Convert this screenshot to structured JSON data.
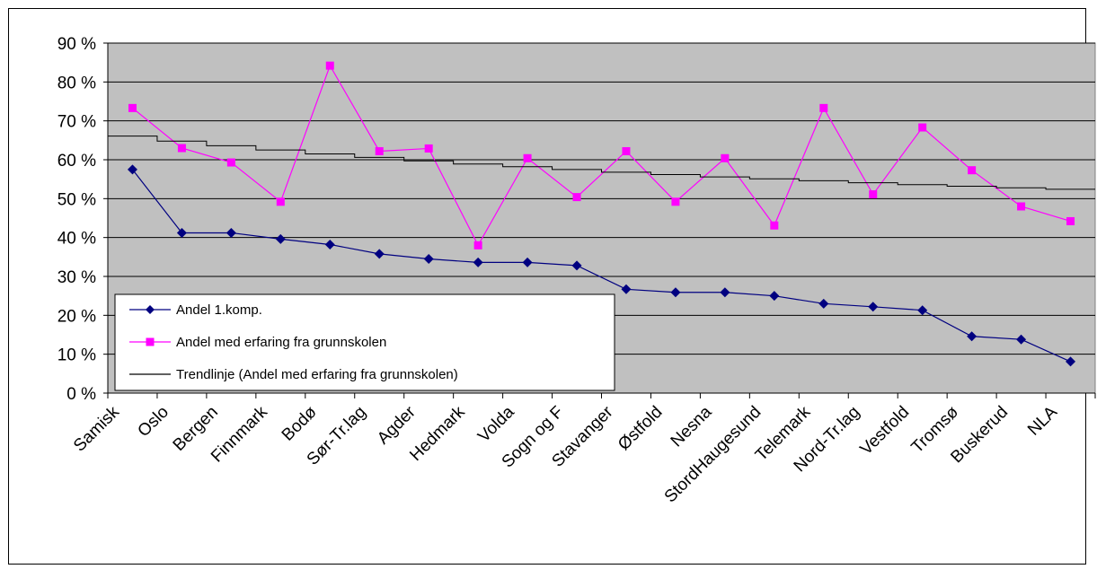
{
  "chart_data": {
    "type": "line",
    "categories": [
      "Samisk",
      "Oslo",
      "Bergen",
      "Finnmark",
      "Bodø",
      "Sør-Tr.lag",
      "Agder",
      "Hedmark",
      "Volda",
      "Sogn og F",
      "Stavanger",
      "Østfold",
      "Nesna",
      "StordHaugesund",
      "Telemark",
      "Nord-Tr.lag",
      "Vestfold",
      "Tromsø",
      "Buskerud",
      "NLA"
    ],
    "series": [
      {
        "name": "Andel 1.komp.",
        "color": "#000080",
        "marker": "diamond",
        "values": [
          57.5,
          41.2,
          41.2,
          39.6,
          38.2,
          35.8,
          34.5,
          33.6,
          33.6,
          32.8,
          26.7,
          25.9,
          25.9,
          25.0,
          23.0,
          22.2,
          21.3,
          14.6,
          13.8,
          8.1
        ]
      },
      {
        "name": "Andel med erfaring fra grunnskolen",
        "color": "#ff00ff",
        "marker": "square",
        "values": [
          73.3,
          63.0,
          59.3,
          49.2,
          84.2,
          62.2,
          62.9,
          38.0,
          60.4,
          50.4,
          62.2,
          49.2,
          60.4,
          43.1,
          73.3,
          51.1,
          68.3,
          57.3,
          48.0,
          44.2
        ]
      },
      {
        "name": "Trendlinje (Andel med erfaring fra grunnskolen)",
        "color": "#000000",
        "marker": "none",
        "trendline": true,
        "values": [
          66.1,
          64.8,
          63.6,
          62.5,
          61.5,
          60.6,
          59.7,
          58.9,
          58.2,
          57.5,
          56.8,
          56.2,
          55.6,
          55.1,
          54.6,
          54.1,
          53.6,
          53.2,
          52.8,
          52.4
        ]
      }
    ],
    "ylim": [
      0,
      90
    ],
    "yticks": [
      "0 %",
      "10 %",
      "20 %",
      "30 %",
      "40 %",
      "50 %",
      "60 %",
      "70 %",
      "80 %",
      "90 %"
    ],
    "ytick_values": [
      0,
      10,
      20,
      30,
      40,
      50,
      60,
      70,
      80,
      90
    ],
    "title": "",
    "xlabel": "",
    "ylabel": "",
    "grid": true,
    "legend": "bottom-left"
  }
}
